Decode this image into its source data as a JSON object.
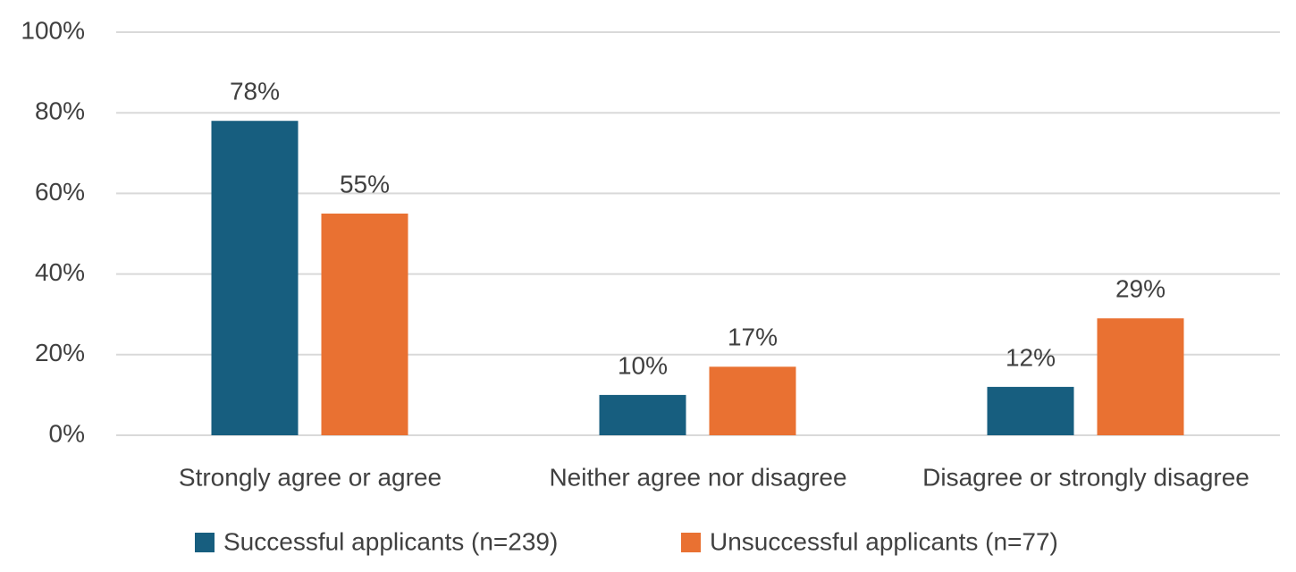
{
  "chart_data": {
    "type": "bar",
    "categories": [
      "Strongly agree or agree",
      "Neither agree nor disagree",
      "Disagree or strongly disagree"
    ],
    "series": [
      {
        "name": "Successful applicants (n=239)",
        "color": "#175e7f",
        "values": [
          78,
          10,
          12
        ],
        "value_labels": [
          "78%",
          "10%",
          "12%"
        ]
      },
      {
        "name": "Unsuccessful applicants (n=77)",
        "color": "#e97132",
        "values": [
          55,
          17,
          29
        ],
        "value_labels": [
          "55%",
          "17%",
          "29%"
        ]
      }
    ],
    "ylim": [
      0,
      100
    ],
    "yticks": [
      {
        "value": 0,
        "label": "0%"
      },
      {
        "value": 20,
        "label": "20%"
      },
      {
        "value": 40,
        "label": "40%"
      },
      {
        "value": 60,
        "label": "60%"
      },
      {
        "value": 80,
        "label": "80%"
      },
      {
        "value": 100,
        "label": "100%"
      }
    ],
    "grid": true,
    "legend": "bottom"
  }
}
